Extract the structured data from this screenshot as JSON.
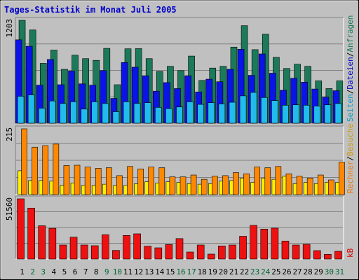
{
  "title": "Tages-Statistik im Monat Juli 2005",
  "colors": {
    "title": "#0000cc",
    "background": "#c0c0c0",
    "weekday_label": "#000000",
    "weekend_label": "#006633",
    "anfragen": "#1b7a5a",
    "dateien": "#0a14e6",
    "seiten": "#22bbee",
    "besuche": "#ffee00",
    "rechner": "#ff8800",
    "kb": "#ee1111",
    "label_dateien": "#0000cc",
    "label_seiten": "#0099cc",
    "label_besuche": "#cc9900",
    "label_rechner": "#ee7700",
    "label_kb": "#dd0000"
  },
  "chart_data": [
    {
      "type": "bar",
      "name": "hits",
      "ymax_label": "1203",
      "ylim": [
        0,
        1203
      ],
      "grid": true,
      "categories": [
        "1",
        "2",
        "3",
        "4",
        "5",
        "6",
        "7",
        "8",
        "9",
        "10",
        "11",
        "12",
        "13",
        "14",
        "15",
        "16",
        "17",
        "18",
        "19",
        "20",
        "21",
        "22",
        "23",
        "24",
        "25",
        "26",
        "27",
        "28",
        "29",
        "30",
        "31"
      ],
      "weekend_days": [
        "2",
        "3",
        "9",
        "10",
        "16",
        "17",
        "23",
        "24",
        "30",
        "31"
      ],
      "series": [
        {
          "name": "Anfragen",
          "color_key": "anfragen",
          "values": [
            1203,
            1090,
            700,
            855,
            630,
            795,
            755,
            735,
            875,
            450,
            870,
            872,
            755,
            605,
            665,
            615,
            785,
            500,
            645,
            665,
            890,
            1140,
            860,
            1040,
            770,
            640,
            690,
            665,
            495,
            405,
            495
          ]
        },
        {
          "name": "Dateien",
          "color_key": "dateien",
          "values": [
            975,
            900,
            445,
            745,
            450,
            610,
            460,
            445,
            615,
            290,
            710,
            655,
            555,
            375,
            475,
            405,
            555,
            365,
            515,
            485,
            630,
            865,
            560,
            810,
            585,
            385,
            525,
            480,
            400,
            305,
            380
          ]
        },
        {
          "name": "Seiten",
          "color_key": "seiten",
          "values": [
            315,
            330,
            175,
            260,
            230,
            250,
            165,
            250,
            230,
            135,
            250,
            230,
            240,
            185,
            170,
            190,
            250,
            220,
            240,
            225,
            245,
            320,
            360,
            300,
            265,
            210,
            215,
            210,
            200,
            215,
            230
          ]
        }
      ],
      "legend": [
        "Anfragen",
        "Dateien",
        "Seiten"
      ]
    },
    {
      "type": "bar",
      "name": "visits",
      "ymax_label": "215",
      "ylim": [
        0,
        215
      ],
      "grid": true,
      "categories": [
        "1",
        "2",
        "3",
        "4",
        "5",
        "6",
        "7",
        "8",
        "9",
        "10",
        "11",
        "12",
        "13",
        "14",
        "15",
        "16",
        "17",
        "18",
        "19",
        "20",
        "21",
        "22",
        "23",
        "24",
        "25",
        "26",
        "27",
        "28",
        "29",
        "30",
        "31"
      ],
      "series": [
        {
          "name": "Besuche",
          "color_key": "besuche",
          "values": [
            78,
            46,
            46,
            44,
            30,
            38,
            30,
            30,
            34,
            30,
            30,
            36,
            42,
            38,
            42,
            40,
            36,
            34,
            36,
            44,
            46,
            54,
            40,
            54,
            50,
            60,
            36,
            40,
            36,
            40,
            40
          ]
        },
        {
          "name": "Rechner",
          "color_key": "rechner",
          "values": [
            215,
            155,
            160,
            165,
            95,
            96,
            90,
            86,
            88,
            62,
            92,
            84,
            90,
            88,
            58,
            58,
            64,
            50,
            60,
            62,
            72,
            68,
            90,
            88,
            92,
            68,
            60,
            54,
            64,
            48,
            106
          ]
        }
      ],
      "legend": [
        "Besuche",
        "Rechner"
      ]
    },
    {
      "type": "bar",
      "name": "kbytes",
      "ymax_label": "51560",
      "ylim": [
        0,
        51560
      ],
      "grid": true,
      "categories": [
        "1",
        "2",
        "3",
        "4",
        "5",
        "6",
        "7",
        "8",
        "9",
        "10",
        "11",
        "12",
        "13",
        "14",
        "15",
        "16",
        "17",
        "18",
        "19",
        "20",
        "21",
        "22",
        "23",
        "24",
        "25",
        "26",
        "27",
        "28",
        "29",
        "30",
        "31"
      ],
      "series": [
        {
          "name": "kB",
          "color_key": "kb",
          "values": [
            51560,
            43600,
            28500,
            26300,
            12000,
            18700,
            12000,
            11400,
            20800,
            7400,
            20200,
            21600,
            11000,
            9600,
            12400,
            17500,
            6000,
            12000,
            4200,
            11200,
            12000,
            19500,
            28800,
            25600,
            26400,
            15400,
            12000,
            12600,
            7200,
            4000,
            6600
          ]
        }
      ],
      "legend": [
        "kB"
      ]
    }
  ],
  "side_labels": {
    "hits": [
      {
        "text": "Anfragen",
        "color_key": "anfragen"
      },
      {
        "text": "Dateien",
        "color_key": "label_dateien"
      },
      {
        "text": "Seiten",
        "color_key": "label_seiten"
      }
    ],
    "visits": [
      {
        "text": "Besuche",
        "color_key": "label_besuche"
      },
      {
        "text": "Rechner",
        "color_key": "label_rechner"
      }
    ],
    "kbytes": [
      {
        "text": "kB",
        "color_key": "label_kb"
      }
    ]
  }
}
